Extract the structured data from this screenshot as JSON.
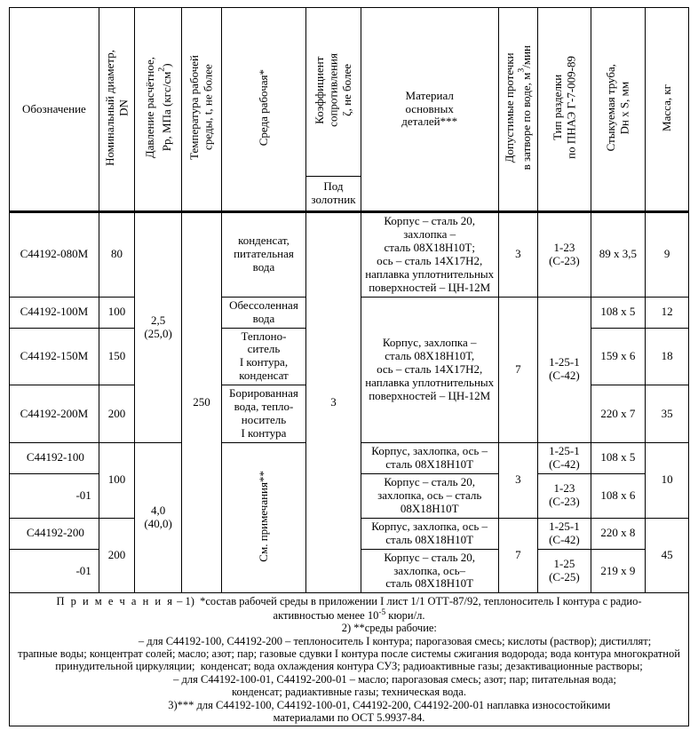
{
  "headers": {
    "c1": "Обозначение",
    "c2": "Номинальный диаметр,\nDN",
    "c3_html": "Давление расчётное,\nPp, МПа (кгс/см<sup>2</sup>)",
    "c4": "Температура рабочей\nсреды, t, не более",
    "c5": "Среда рабочая*",
    "c6": "Коэффициент\nсопротивления\nζ, не более",
    "c6sub": "Под\nзолотник",
    "c7": "Материал\nосновных\nдеталей***",
    "c8_html": "Допустимые протечки\nв затворе по воде, м<sup>3</sup>/мин",
    "c9": "Тип разделки\nпо ПНАЭ Г-7-009-89",
    "c10": "Стыкуемая труба,\nDн x S, мм",
    "c11": "Масса, кг"
  },
  "cells": {
    "r1_c1": "С44192-080М",
    "r1_c2": "80",
    "r1_c5": "конденсат,\nпитательная\nвода",
    "r1_c7": "Корпус – сталь 20,\nзахлопка –\nсталь 08Х18Н10Т;\nось – сталь 14Х17Н2,\nнаплавка уплотнительных\nповерхностей – ЦН-12М",
    "r1_c8": "3",
    "r1_c9": "1-23\n(С-23)",
    "r1_c10": "89 x 3,5",
    "r1_c11": "9",
    "r2_c1": "С44192-100М",
    "r2_c2": "100",
    "r2_c5": "Обессоленная\nвода",
    "r2_c10": "108 x 5",
    "r2_c11": "12",
    "r3_c1": "С44192-150М",
    "r3_c2": "150",
    "r3_c5": "Теплоно-\nситель\nI контура,\nконденсат",
    "r3_c10": "159 x 6",
    "r3_c11": "18",
    "r4_c1": "С44192-200М",
    "r4_c2": "200",
    "r4_c5": "Борированная\nвода, тепло-\nноситель\nI контура",
    "r4_c10": "220 x 7",
    "r4_c11": "35",
    "g23_c3": "2,5\n(25,0)",
    "g_all_c4": "250",
    "g_all_c6": "3",
    "g234_c7": "Корпус, захлопка –\nсталь 08Х18Н10Т,\nось – сталь 14Х17Н2,\nнаплавка уплотнительных\nповерхностей – ЦН-12М",
    "g234_c8": "7",
    "g234_c9": "1-25-1\n(С-42)",
    "r5_c1": "С44192-100",
    "r5s_c1": "-01",
    "r5_c2": "100",
    "r5_c7": "Корпус, захлопка, ось –\nсталь 08Х18Н10Т",
    "r5_c9": "1-25-1\n(С-42)",
    "r5_c10": "108 x 5",
    "r5_c8": "3",
    "r5_c11": "10",
    "r5s_c7": "Корпус – сталь 20,\nзахлопка, ось – сталь\n08Х18Н10Т",
    "r5s_c9": "1-23\n(С-23)",
    "r5s_c10": "108 x 6",
    "r6_c1": "С44192-200",
    "r6s_c1": "-01",
    "r6_c2": "200",
    "r6_c7": "Корпус, захлопка, ось –\nсталь 08Х18Н10Т",
    "r6_c8": "7",
    "r6_c9": "1-25-1\n(С-42)",
    "r6_c10": "220 x 8",
    "r6_c11": "45",
    "r6s_c7": "Корпус – сталь 20,\nзахлопка, ось–\nсталь 08Х18Н10Т",
    "r6s_c9": "1-25\n(С-25)",
    "r6s_c10": "219 x 9",
    "g56_c3": "4,0\n(40,0)",
    "g56_c5": "См. примечания**"
  },
  "notes_html": "<span class=\"spaced\">П р и м е ч а н и я</span> – 1) &nbsp;*состав рабочей среды в приложении I лист 1/1 ОТТ-87/92, теплоноситель I контура с радио-<br>активностью менее 10<sup>-5</sup> кюри/л.<br>&nbsp;&nbsp;&nbsp;&nbsp;&nbsp;&nbsp;&nbsp;&nbsp;&nbsp;&nbsp;&nbsp;&nbsp;&nbsp;&nbsp;&nbsp;&nbsp;&nbsp;&nbsp;&nbsp;&nbsp;&nbsp;&nbsp;&nbsp;&nbsp;&nbsp;&nbsp;&nbsp;&nbsp;&nbsp;2) **среды рабочие:<br>&nbsp;&nbsp;&nbsp;&nbsp;&nbsp;&nbsp;&nbsp;&nbsp;&nbsp;&nbsp;&nbsp;&nbsp;&nbsp;&nbsp;&nbsp;&nbsp;&nbsp;&nbsp;&nbsp;&nbsp;&nbsp;&nbsp;&nbsp;&nbsp;&nbsp;&nbsp;&nbsp;&nbsp;&nbsp;&nbsp;&nbsp;&nbsp;&nbsp;– для С44192-100, С44192-200 – теплоноситель I контура; парогазовая смесь; кислоты (раствор); дистиллят;<br>трапные воды; концентрат солей; масло; азот; пар; газовые сдувки I контура после системы сжигания водорода; вода контура многократной принудительной циркуляции; &nbsp;конденсат; вода охлаждения контура СУЗ; радиоактивные газы; дезактивационные растворы;<br>&nbsp;&nbsp;&nbsp;&nbsp;&nbsp;&nbsp;&nbsp;&nbsp;&nbsp;&nbsp;&nbsp;&nbsp;&nbsp;&nbsp;&nbsp;&nbsp;&nbsp;&nbsp;&nbsp;&nbsp;&nbsp;&nbsp;&nbsp;&nbsp;&nbsp;&nbsp;&nbsp;&nbsp;&nbsp;&nbsp;&nbsp;&nbsp;&nbsp;– для С44192-100-01, С44192-200-01 – масло; парогазовая смесь; азот; пар; питательная вода;<br>конденсат; радиактивные газы; техническая вода.<br>&nbsp;&nbsp;&nbsp;&nbsp;&nbsp;&nbsp;&nbsp;&nbsp;&nbsp;&nbsp;&nbsp;&nbsp;&nbsp;&nbsp;&nbsp;&nbsp;&nbsp;&nbsp;&nbsp;&nbsp;&nbsp;&nbsp;&nbsp;&nbsp;&nbsp;&nbsp;&nbsp;&nbsp;&nbsp;3)*** для С44192-100, С44192-100-01, С44192-200, С44192-200-01 наплавка износостойкими<br>материалами по ОСТ 5.9937-84."
}
